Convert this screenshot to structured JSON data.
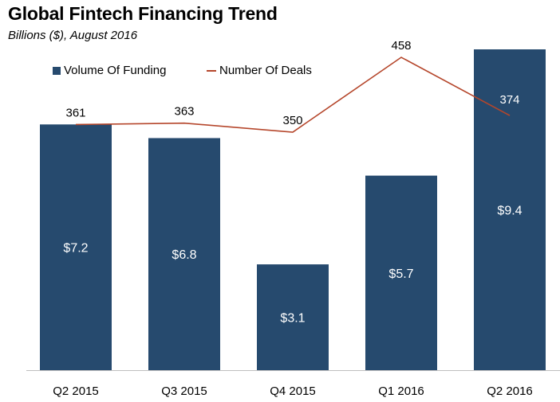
{
  "title": "Global Fintech Financing Trend",
  "subtitle": "Billions ($), August 2016",
  "chart_data": {
    "type": "bar",
    "categories": [
      "Q2 2015",
      "Q3 2015",
      "Q4 2015",
      "Q1 2016",
      "Q2 2016"
    ],
    "series": [
      {
        "name": "Volume Of Funding",
        "kind": "bar",
        "values": [
          7.2,
          6.8,
          3.1,
          5.7,
          9.4
        ],
        "labels": [
          "$7.2",
          "$6.8",
          "$3.1",
          "$5.7",
          "$9.4"
        ],
        "color": "#264a6e"
      },
      {
        "name": "Number Of Deals",
        "kind": "line",
        "values": [
          361,
          363,
          350,
          458,
          374
        ],
        "labels": [
          "361",
          "363",
          "350",
          "458",
          "374"
        ],
        "color": "#b5462b"
      }
    ],
    "bar_ylim": [
      0,
      9.4
    ],
    "line_ylim": [
      0,
      458
    ],
    "legend": "top-left",
    "grid": false
  }
}
